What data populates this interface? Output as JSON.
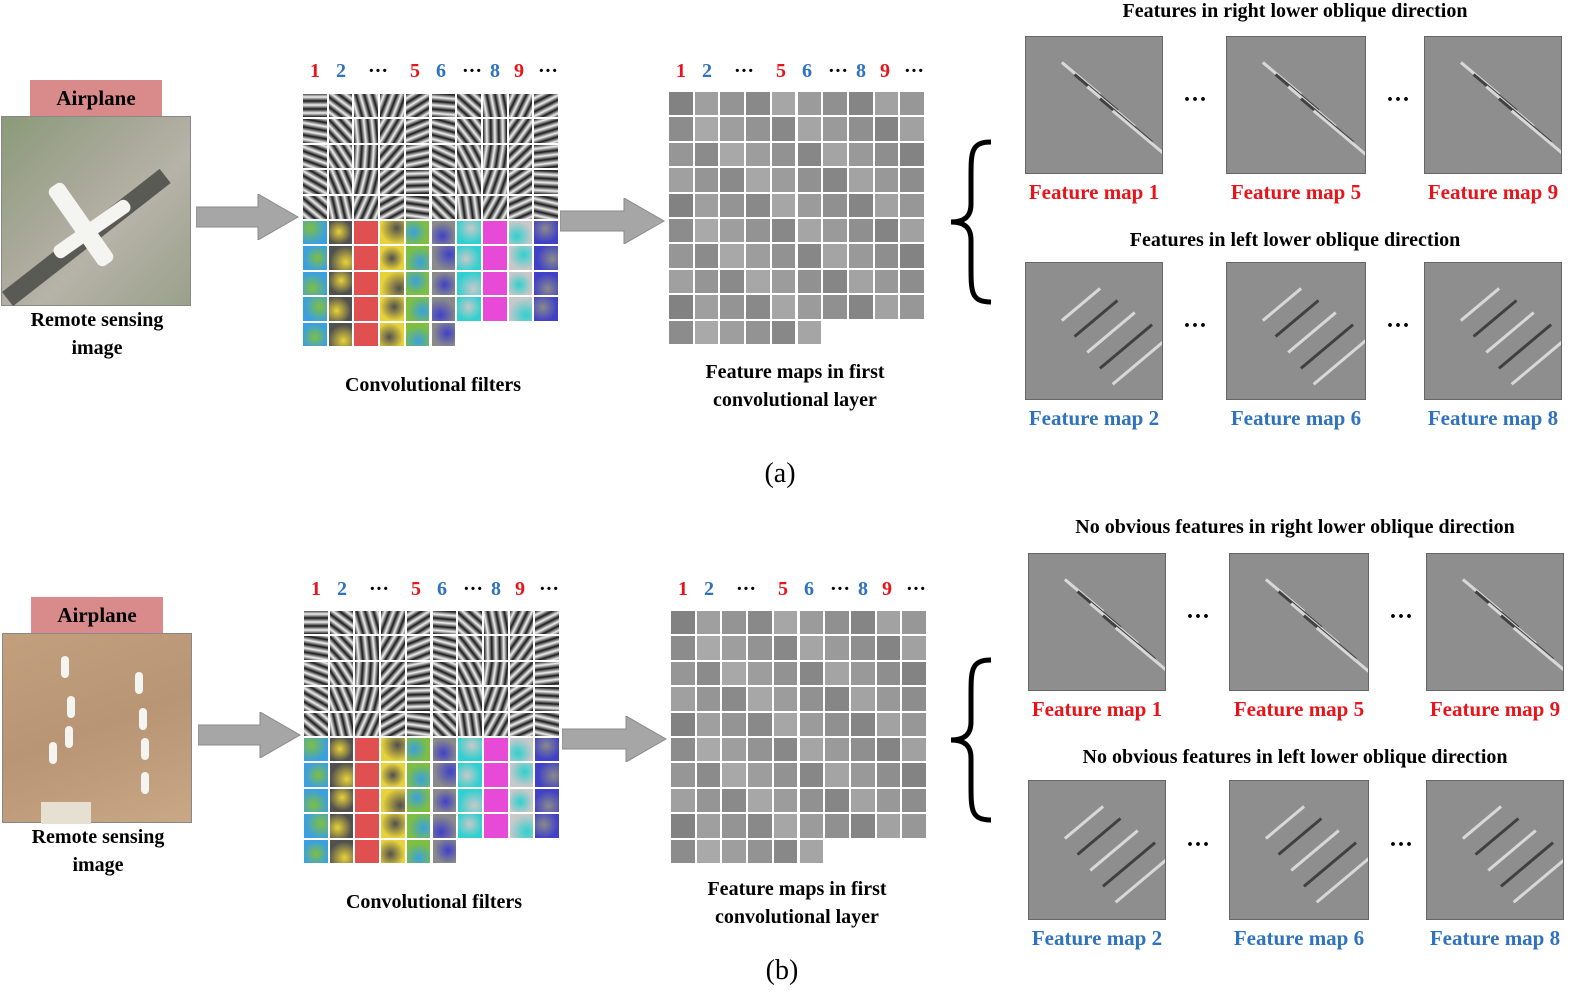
{
  "panels": [
    {
      "id": "a",
      "tag": "Airplane",
      "image_caption_line1": "Remote sensing",
      "image_caption_line2": "image",
      "filters_caption": "Convolutional filters",
      "fmaps_caption_line1": "Feature maps in first",
      "fmaps_caption_line2": "convolutional layer",
      "filter_numbers": [
        {
          "text": "1",
          "color": "red"
        },
        {
          "text": "2",
          "color": "blue"
        },
        {
          "text": "···",
          "color": "black"
        },
        {
          "text": "5",
          "color": "red"
        },
        {
          "text": "6",
          "color": "blue"
        },
        {
          "text": "···",
          "color": "black"
        },
        {
          "text": "8",
          "color": "blue"
        },
        {
          "text": "9",
          "color": "red"
        },
        {
          "text": "···",
          "color": "black"
        }
      ],
      "top_title": "Features in right lower oblique direction",
      "bottom_title": "Features in left lower oblique direction",
      "top_maps": [
        "Feature map 1",
        "Feature map 5",
        "Feature map 9"
      ],
      "bottom_maps": [
        "Feature map 2",
        "Feature map 6",
        "Feature map 8"
      ],
      "ellipsis": "···",
      "sublabel": "(a)"
    },
    {
      "id": "b",
      "tag": "Airplane",
      "image_caption_line1": "Remote sensing",
      "image_caption_line2": "image",
      "filters_caption": "Convolutional filters",
      "fmaps_caption_line1": "Feature maps in first",
      "fmaps_caption_line2": "convolutional layer",
      "filter_numbers": [
        {
          "text": "1",
          "color": "red"
        },
        {
          "text": "2",
          "color": "blue"
        },
        {
          "text": "···",
          "color": "black"
        },
        {
          "text": "5",
          "color": "red"
        },
        {
          "text": "6",
          "color": "blue"
        },
        {
          "text": "···",
          "color": "black"
        },
        {
          "text": "8",
          "color": "blue"
        },
        {
          "text": "9",
          "color": "red"
        },
        {
          "text": "···",
          "color": "black"
        }
      ],
      "top_title": "No obvious features in right lower oblique direction",
      "bottom_title": "No obvious features in left lower oblique direction",
      "top_maps": [
        "Feature map 1",
        "Feature map 5",
        "Feature map 9"
      ],
      "bottom_maps": [
        "Feature map 2",
        "Feature map 6",
        "Feature map 8"
      ],
      "ellipsis": "···",
      "sublabel": "(b)"
    }
  ],
  "colors": {
    "red": "#e8141a",
    "blue": "#2e72c0",
    "tag_bg": "#d98a8a",
    "arrow": "#a6a6a6"
  }
}
